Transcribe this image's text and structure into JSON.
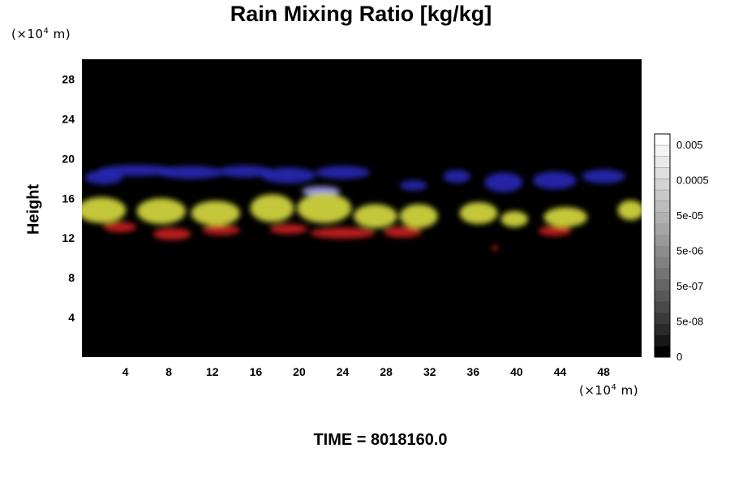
{
  "chart_data": {
    "type": "heatmap",
    "title": "Rain Mixing Ratio [kg/kg]",
    "ylabel": "Height",
    "x_unit_prefix": "(×10",
    "x_unit_exponent": "4",
    "x_unit_suffix": " m)",
    "y_unit_prefix": "(×10",
    "y_unit_exponent": "4",
    "y_unit_suffix": " m)",
    "xlim": [
      0,
      51.5
    ],
    "ylim": [
      0,
      30
    ],
    "x_ticks": [
      4,
      8,
      12,
      16,
      20,
      24,
      28,
      32,
      36,
      40,
      44,
      48
    ],
    "y_ticks": [
      4,
      8,
      12,
      16,
      20,
      24,
      28
    ],
    "colorbar": {
      "tick_labels": [
        "0.005",
        "0.0005",
        "5e-05",
        "5e-06",
        "5e-07",
        "5e-08",
        "0"
      ],
      "levels": 20,
      "colors": [
        "#000000",
        "#ffffff"
      ]
    },
    "background_color": "#000000",
    "layers": [
      {
        "color": "#2a2ac8",
        "height_range": [
          16.5,
          19.5
        ],
        "x_range": [
          1,
          51
        ]
      },
      {
        "color": "#c8c832",
        "height_range": [
          13.5,
          16.5
        ],
        "x_range": [
          0,
          51.5
        ]
      },
      {
        "color": "#c81e1e",
        "height_range": [
          12,
          14
        ],
        "x_range": [
          1,
          44
        ]
      }
    ],
    "cells": [
      {
        "layer": 0,
        "x": 2,
        "y": 18.1,
        "w": 3.5,
        "h": 1.4
      },
      {
        "layer": 0,
        "x": 5,
        "y": 18.8,
        "w": 7,
        "h": 1.1
      },
      {
        "layer": 0,
        "x": 10,
        "y": 18.6,
        "w": 6,
        "h": 1.3
      },
      {
        "layer": 0,
        "x": 15,
        "y": 18.7,
        "w": 5,
        "h": 1.2
      },
      {
        "layer": 0,
        "x": 19,
        "y": 18.3,
        "w": 5,
        "h": 1.6
      },
      {
        "layer": 0,
        "x": 24,
        "y": 18.6,
        "w": 5,
        "h": 1.3
      },
      {
        "layer": 0,
        "x": 30.5,
        "y": 17.3,
        "w": 2.5,
        "h": 1.0
      },
      {
        "layer": 0,
        "x": 34.5,
        "y": 18.2,
        "w": 2.5,
        "h": 1.3
      },
      {
        "layer": 0,
        "x": 38.8,
        "y": 17.6,
        "w": 3.5,
        "h": 2.0
      },
      {
        "layer": 0,
        "x": 43.5,
        "y": 17.8,
        "w": 4,
        "h": 1.8
      },
      {
        "layer": 0,
        "x": 48,
        "y": 18.2,
        "w": 4,
        "h": 1.4
      },
      {
        "layer": 3,
        "x": 22,
        "y": 16.7,
        "w": 3.5,
        "h": 1.0
      },
      {
        "layer": 2,
        "x": 3.5,
        "y": 13.1,
        "w": 3,
        "h": 1.0
      },
      {
        "layer": 2,
        "x": 8.3,
        "y": 12.4,
        "w": 3.5,
        "h": 1.2
      },
      {
        "layer": 2,
        "x": 12.8,
        "y": 12.8,
        "w": 3.5,
        "h": 1.0
      },
      {
        "layer": 2,
        "x": 19,
        "y": 12.9,
        "w": 3.5,
        "h": 1.0
      },
      {
        "layer": 2,
        "x": 24,
        "y": 12.5,
        "w": 6,
        "h": 1.1
      },
      {
        "layer": 2,
        "x": 29.5,
        "y": 12.6,
        "w": 3.5,
        "h": 1.1
      },
      {
        "layer": 2,
        "x": 43.5,
        "y": 12.7,
        "w": 3,
        "h": 1.0
      },
      {
        "layer": 2,
        "x": 38,
        "y": 11.0,
        "w": 0.6,
        "h": 0.5
      },
      {
        "layer": 1,
        "x": 1.8,
        "y": 14.8,
        "w": 4.5,
        "h": 2.6
      },
      {
        "layer": 1,
        "x": 7.3,
        "y": 14.7,
        "w": 4.5,
        "h": 2.6
      },
      {
        "layer": 1,
        "x": 12.3,
        "y": 14.5,
        "w": 4.5,
        "h": 2.5
      },
      {
        "layer": 1,
        "x": 17.5,
        "y": 15.0,
        "w": 4,
        "h": 2.8
      },
      {
        "layer": 1,
        "x": 22.3,
        "y": 15.0,
        "w": 5,
        "h": 3.0
      },
      {
        "layer": 1,
        "x": 27,
        "y": 14.2,
        "w": 4,
        "h": 2.4
      },
      {
        "layer": 1,
        "x": 31,
        "y": 14.2,
        "w": 3.5,
        "h": 2.4
      },
      {
        "layer": 1,
        "x": 36.5,
        "y": 14.5,
        "w": 3.5,
        "h": 2.2
      },
      {
        "layer": 1,
        "x": 39.8,
        "y": 13.9,
        "w": 2.5,
        "h": 1.6
      },
      {
        "layer": 1,
        "x": 44.5,
        "y": 14.1,
        "w": 4,
        "h": 2.0
      },
      {
        "layer": 1,
        "x": 50.5,
        "y": 14.8,
        "w": 2.4,
        "h": 2.0
      }
    ],
    "cell_colors": [
      "#2b2bc2",
      "#cfd23c",
      "#c21f1f",
      "#9a9ae6"
    ]
  },
  "time_label": "TIME = 8018160.0"
}
